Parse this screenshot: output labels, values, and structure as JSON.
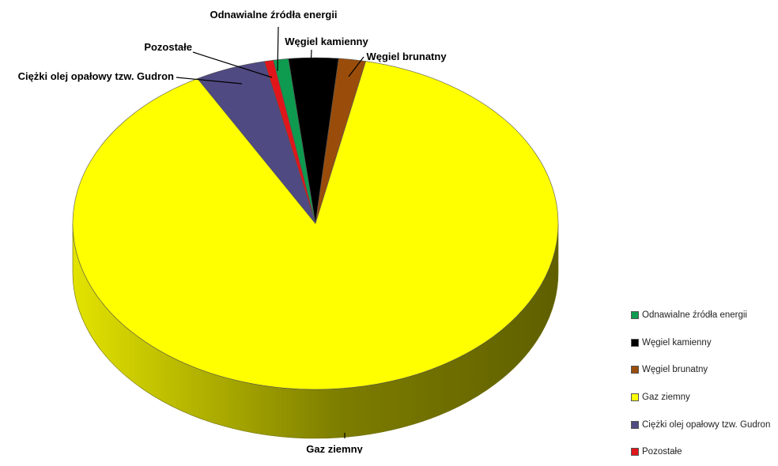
{
  "chart_data": {
    "type": "pie",
    "title": "",
    "slices": [
      {
        "label": "Odnawialne źródła energii",
        "value": 1.0,
        "color": "#0e9b4f"
      },
      {
        "label": "Węgiel kamienny",
        "value": 3.3,
        "color": "#000000"
      },
      {
        "label": "Węgiel brunatny",
        "value": 1.8,
        "color": "#9a4d0a"
      },
      {
        "label": "Gaz ziemny",
        "value": 88.6,
        "color": "#ffff00"
      },
      {
        "label": "Ciężki olej opałowy tzw. Gudron",
        "value": 4.7,
        "color": "#4f4a82"
      },
      {
        "label": "Pozostałe",
        "value": 0.6,
        "color": "#e0161b"
      }
    ],
    "legend": {
      "position": "bottom-right"
    },
    "style": "3d"
  }
}
